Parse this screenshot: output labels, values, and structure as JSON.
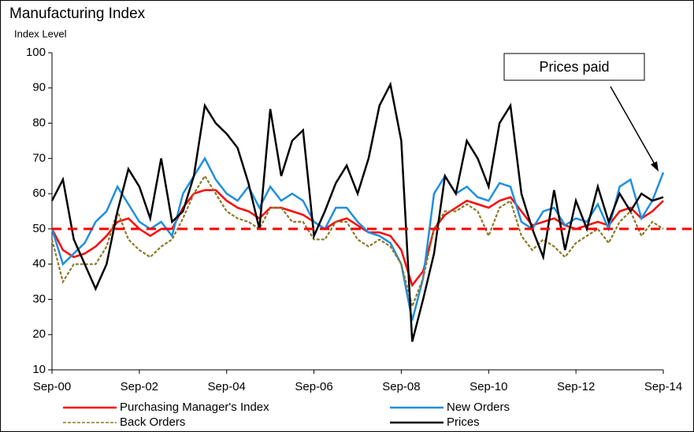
{
  "chart_data": {
    "type": "line",
    "title": "Manufacturing Index",
    "y_label": "Index Level",
    "categories": [
      "Sep-00",
      null,
      null,
      null,
      null,
      null,
      null,
      null,
      "Sep-02",
      null,
      null,
      null,
      null,
      null,
      null,
      null,
      "Sep-04",
      null,
      null,
      null,
      null,
      null,
      null,
      null,
      "Sep-06",
      null,
      null,
      null,
      null,
      null,
      null,
      null,
      "Sep-08",
      null,
      null,
      null,
      null,
      null,
      null,
      null,
      "Sep-10",
      null,
      null,
      null,
      null,
      null,
      null,
      null,
      "Sep-12",
      null,
      null,
      null,
      null,
      null,
      null,
      null,
      "Sep-14"
    ],
    "series": [
      {
        "name": "Purchasing Manager's Index",
        "color": "#ff0000",
        "dash": false,
        "values": [
          50,
          44,
          42,
          43,
          45,
          48,
          52,
          53,
          50,
          48,
          50,
          50,
          56,
          60,
          61,
          61,
          58,
          56,
          55,
          53,
          56,
          56,
          55,
          54,
          52,
          50,
          52,
          53,
          51,
          49,
          49,
          48,
          44,
          34,
          38,
          50,
          54,
          56,
          58,
          57,
          56,
          58,
          59,
          55,
          51,
          52,
          53,
          51,
          50,
          51,
          52,
          51,
          55,
          56,
          53,
          55,
          58
        ]
      },
      {
        "name": "New Orders",
        "color": "#1f8fe0",
        "dash": false,
        "values": [
          50,
          40,
          43,
          46,
          52,
          55,
          62,
          57,
          52,
          50,
          52,
          48,
          60,
          65,
          70,
          64,
          60,
          58,
          62,
          56,
          62,
          58,
          60,
          58,
          52,
          50,
          56,
          56,
          52,
          49,
          48,
          46,
          40,
          24,
          36,
          60,
          65,
          60,
          62,
          59,
          58,
          63,
          62,
          52,
          50,
          55,
          56,
          51,
          53,
          52,
          57,
          50,
          62,
          64,
          53,
          58,
          66
        ]
      },
      {
        "name": "Back Orders",
        "color": "#8c7a2a",
        "dash": true,
        "values": [
          47,
          35,
          40,
          40,
          40,
          45,
          55,
          47,
          44,
          42,
          45,
          47,
          53,
          60,
          65,
          60,
          55,
          53,
          52,
          50,
          56,
          56,
          52,
          52,
          47,
          47,
          52,
          52,
          47,
          45,
          47,
          45,
          40,
          28,
          36,
          50,
          55,
          55,
          57,
          55,
          48,
          56,
          58,
          48,
          44,
          47,
          45,
          42,
          46,
          48,
          50,
          46,
          52,
          55,
          48,
          52,
          50
        ]
      },
      {
        "name": "Prices",
        "color": "#000000",
        "dash": false,
        "values": [
          58,
          64,
          47,
          40,
          33,
          40,
          55,
          67,
          62,
          53,
          70,
          52,
          55,
          65,
          85,
          80,
          77,
          73,
          63,
          50,
          84,
          65,
          75,
          78,
          48,
          55,
          63,
          68,
          60,
          70,
          85,
          91,
          75,
          18,
          30,
          43,
          65,
          60,
          75,
          70,
          62,
          80,
          85,
          60,
          50,
          42,
          61,
          44,
          58,
          50,
          62,
          52,
          60,
          55,
          60,
          58,
          59
        ]
      }
    ],
    "ylim": [
      10,
      100
    ],
    "yticks": [
      10,
      20,
      30,
      40,
      50,
      60,
      70,
      80,
      90,
      100
    ],
    "reference_line": {
      "value": 50,
      "color": "#ff0000"
    },
    "annotation": "Prices paid"
  }
}
